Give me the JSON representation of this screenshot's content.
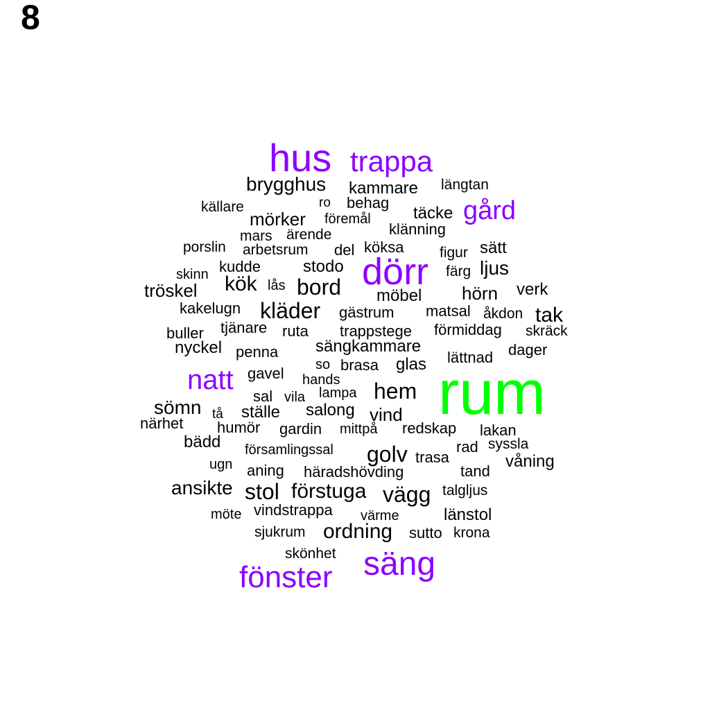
{
  "panel_label": "8",
  "colors": {
    "tier1": "#00ff00",
    "tier2": "#8c00ff",
    "tier3": "#000000"
  },
  "words": [
    {
      "text": "rum",
      "tier": 1
    },
    {
      "text": "hus",
      "tier": 2
    },
    {
      "text": "trappa",
      "tier": 2
    },
    {
      "text": "gård",
      "tier": 2
    },
    {
      "text": "dörr",
      "tier": 2
    },
    {
      "text": "natt",
      "tier": 2
    },
    {
      "text": "säng",
      "tier": 2
    },
    {
      "text": "fönster",
      "tier": 2
    },
    {
      "text": "brygghus",
      "tier": 3
    },
    {
      "text": "kammare",
      "tier": 3
    },
    {
      "text": "längtan",
      "tier": 3
    },
    {
      "text": "ro",
      "tier": 3
    },
    {
      "text": "behag",
      "tier": 3
    },
    {
      "text": "källare",
      "tier": 3
    },
    {
      "text": "täcke",
      "tier": 3
    },
    {
      "text": "föremål",
      "tier": 3
    },
    {
      "text": "mörker",
      "tier": 3
    },
    {
      "text": "klänning",
      "tier": 3
    },
    {
      "text": "ärende",
      "tier": 3
    },
    {
      "text": "mars",
      "tier": 3
    },
    {
      "text": "porslin",
      "tier": 3
    },
    {
      "text": "köksa",
      "tier": 3
    },
    {
      "text": "arbetsrum",
      "tier": 3
    },
    {
      "text": "del",
      "tier": 3
    },
    {
      "text": "figur",
      "tier": 3
    },
    {
      "text": "sätt",
      "tier": 3
    },
    {
      "text": "kudde",
      "tier": 3
    },
    {
      "text": "stodo",
      "tier": 3
    },
    {
      "text": "färg",
      "tier": 3
    },
    {
      "text": "ljus",
      "tier": 3
    },
    {
      "text": "skinn",
      "tier": 3
    },
    {
      "text": "kök",
      "tier": 3
    },
    {
      "text": "lås",
      "tier": 3
    },
    {
      "text": "bord",
      "tier": 3
    },
    {
      "text": "tröskel",
      "tier": 3
    },
    {
      "text": "möbel",
      "tier": 3
    },
    {
      "text": "hörn",
      "tier": 3
    },
    {
      "text": "verk",
      "tier": 3
    },
    {
      "text": "kakelugn",
      "tier": 3
    },
    {
      "text": "kläder",
      "tier": 3
    },
    {
      "text": "gästrum",
      "tier": 3
    },
    {
      "text": "matsal",
      "tier": 3
    },
    {
      "text": "åkdon",
      "tier": 3
    },
    {
      "text": "tak",
      "tier": 3
    },
    {
      "text": "tjänare",
      "tier": 3
    },
    {
      "text": "buller",
      "tier": 3
    },
    {
      "text": "ruta",
      "tier": 3
    },
    {
      "text": "trappstege",
      "tier": 3
    },
    {
      "text": "förmiddag",
      "tier": 3
    },
    {
      "text": "skräck",
      "tier": 3
    },
    {
      "text": "nyckel",
      "tier": 3
    },
    {
      "text": "sängkammare",
      "tier": 3
    },
    {
      "text": "penna",
      "tier": 3
    },
    {
      "text": "dager",
      "tier": 3
    },
    {
      "text": "lättnad",
      "tier": 3
    },
    {
      "text": "so",
      "tier": 3
    },
    {
      "text": "brasa",
      "tier": 3
    },
    {
      "text": "glas",
      "tier": 3
    },
    {
      "text": "gavel",
      "tier": 3
    },
    {
      "text": "hands",
      "tier": 3
    },
    {
      "text": "hem",
      "tier": 3
    },
    {
      "text": "lampa",
      "tier": 3
    },
    {
      "text": "sal",
      "tier": 3
    },
    {
      "text": "vila",
      "tier": 3
    },
    {
      "text": "sömn",
      "tier": 3
    },
    {
      "text": "salong",
      "tier": 3
    },
    {
      "text": "tå",
      "tier": 3
    },
    {
      "text": "ställe",
      "tier": 3
    },
    {
      "text": "vind",
      "tier": 3
    },
    {
      "text": "närhet",
      "tier": 3
    },
    {
      "text": "humör",
      "tier": 3
    },
    {
      "text": "mittpå",
      "tier": 3
    },
    {
      "text": "gardin",
      "tier": 3
    },
    {
      "text": "redskap",
      "tier": 3
    },
    {
      "text": "lakan",
      "tier": 3
    },
    {
      "text": "bädd",
      "tier": 3
    },
    {
      "text": "syssla",
      "tier": 3
    },
    {
      "text": "församlingssal",
      "tier": 3
    },
    {
      "text": "golv",
      "tier": 3
    },
    {
      "text": "rad",
      "tier": 3
    },
    {
      "text": "trasa",
      "tier": 3
    },
    {
      "text": "våning",
      "tier": 3
    },
    {
      "text": "ugn",
      "tier": 3
    },
    {
      "text": "aning",
      "tier": 3
    },
    {
      "text": "häradshövding",
      "tier": 3
    },
    {
      "text": "tand",
      "tier": 3
    },
    {
      "text": "ansikte",
      "tier": 3
    },
    {
      "text": "stol",
      "tier": 3
    },
    {
      "text": "förstuga",
      "tier": 3
    },
    {
      "text": "vägg",
      "tier": 3
    },
    {
      "text": "talgljus",
      "tier": 3
    },
    {
      "text": "möte",
      "tier": 3
    },
    {
      "text": "vindstrappa",
      "tier": 3
    },
    {
      "text": "värme",
      "tier": 3
    },
    {
      "text": "länstol",
      "tier": 3
    },
    {
      "text": "sjukrum",
      "tier": 3
    },
    {
      "text": "ordning",
      "tier": 3
    },
    {
      "text": "sutto",
      "tier": 3
    },
    {
      "text": "krona",
      "tier": 3
    },
    {
      "text": "skönhet",
      "tier": 3
    }
  ]
}
